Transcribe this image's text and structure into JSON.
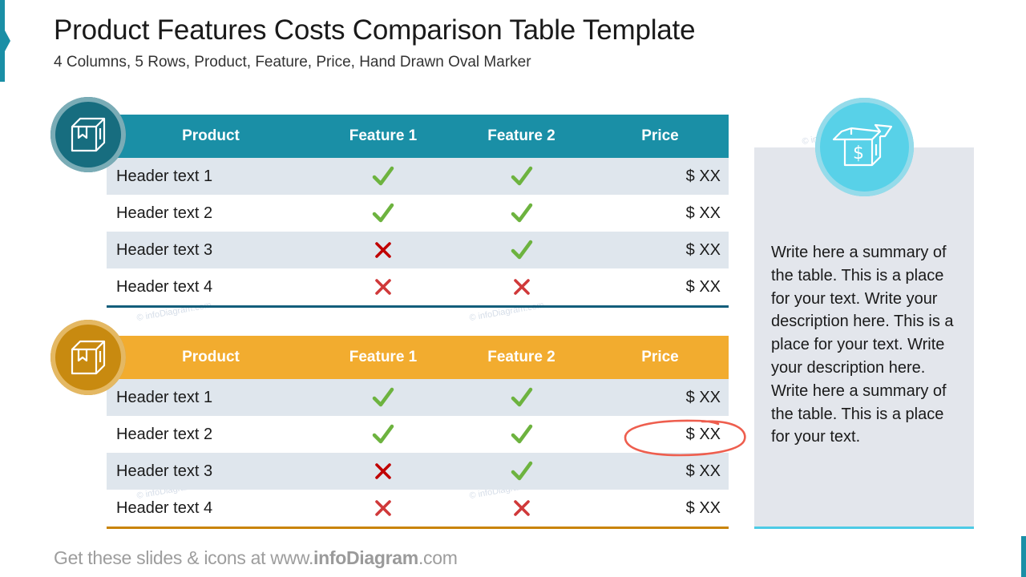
{
  "slide": {
    "title": "Product Features Costs Comparison Table Template",
    "subtitle": "4 Columns, 5 Rows, Product, Feature, Price, Hand Drawn Oval Marker"
  },
  "colors": {
    "teal_header": "#1a8fa6",
    "teal_line": "#135e7b",
    "orange_header": "#f2ac2f",
    "orange_line": "#c98406",
    "row_alt": "#dfe6ed",
    "check_green": "#6db33f",
    "cross_red": "#c9312f",
    "oval_marker": "#ee5e4e",
    "summary_bg": "#e3e6ec",
    "summary_accent": "#4dcbe6"
  },
  "tables": [
    {
      "icon": "box-icon",
      "headers": [
        "Product",
        "Feature 1",
        "Feature 2",
        "Price"
      ],
      "rows": [
        {
          "product": "Header text 1",
          "f1": "check",
          "f2": "check",
          "price": "$ XX"
        },
        {
          "product": "Header text 2",
          "f1": "check",
          "f2": "check",
          "price": "$ XX"
        },
        {
          "product": "Header text 3",
          "f1": "cross",
          "f2": "check",
          "price": "$ XX"
        },
        {
          "product": "Header text 4",
          "f1": "cross",
          "f2": "cross",
          "price": "$ XX"
        }
      ]
    },
    {
      "icon": "box-icon",
      "headers": [
        "Product",
        "Feature 1",
        "Feature 2",
        "Price"
      ],
      "rows": [
        {
          "product": "Header text 1",
          "f1": "check",
          "f2": "check",
          "price": "$ XX"
        },
        {
          "product": "Header text 2",
          "f1": "check",
          "f2": "check",
          "price": "$ XX",
          "marked": true
        },
        {
          "product": "Header text 3",
          "f1": "cross",
          "f2": "check",
          "price": "$ XX"
        },
        {
          "product": "Header text 4",
          "f1": "cross",
          "f2": "cross",
          "price": "$ XX"
        }
      ]
    }
  ],
  "summary": {
    "icon": "money-box-icon",
    "text": "Write here a summary of the table. This is a place for your text. Write your description here. This is a place for your text. Write your description here. Write here a summary of the table. This is a place for your text."
  },
  "watermark": "© infoDiagram.com",
  "footer": {
    "prefix": "Get these slides & icons at www.",
    "brand": "infoDiagram",
    "suffix": ".com"
  }
}
